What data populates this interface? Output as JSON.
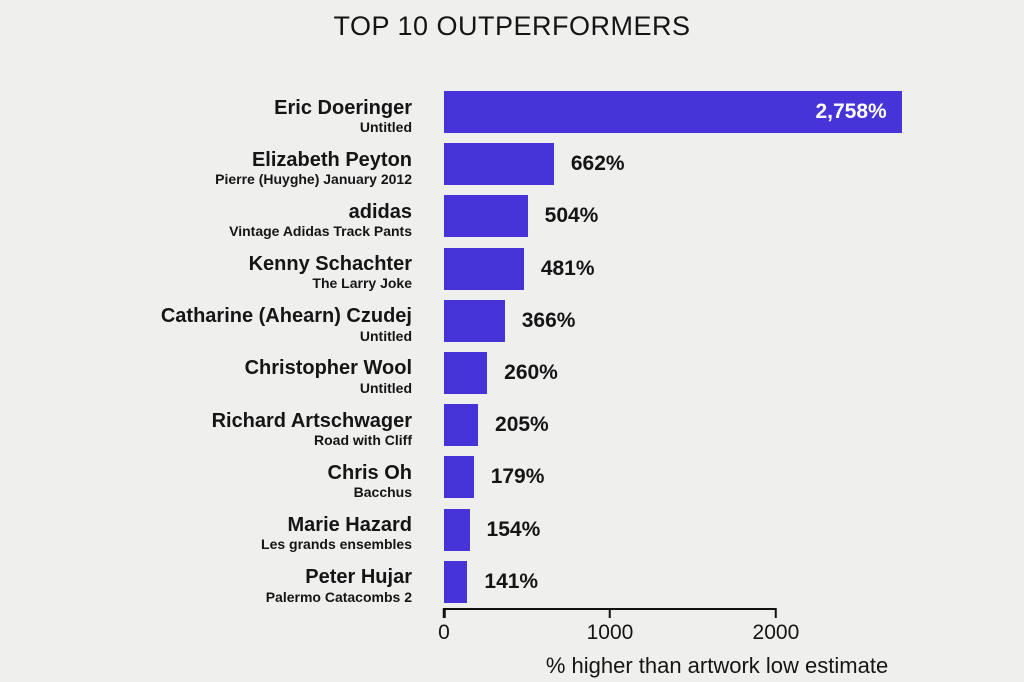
{
  "colors": {
    "bar": "#4634d9",
    "background": "#efefee",
    "text": "#151515",
    "value_inside": "#ffffff"
  },
  "chart_data": {
    "type": "bar",
    "orientation": "horizontal",
    "title": "TOP 10 OUTPERFORMERS",
    "xlabel": "% higher than artwork low estimate",
    "xlim": [
      0,
      3290
    ],
    "xticks": [
      0,
      1000,
      2000
    ],
    "xtick_labels": [
      "0",
      "1000",
      "2000"
    ],
    "grid": false,
    "legend": false,
    "categories": [
      "Eric Doeringer",
      "Elizabeth Peyton",
      "adidas",
      "Kenny Schachter",
      "Catharine (Ahearn) Czudej",
      "Christopher Wool",
      "Richard Artschwager",
      "Chris Oh",
      "Marie Hazard",
      "Peter Hujar"
    ],
    "artwork_titles": [
      "Untitled",
      "Pierre (Huyghe) January 2012",
      "Vintage Adidas Track Pants",
      "The Larry Joke",
      "Untitled",
      "Untitled",
      "Road with Cliff",
      "Bacchus",
      "Les grands ensembles",
      "Palermo Catacombs 2"
    ],
    "values": [
      2758,
      662,
      504,
      481,
      366,
      260,
      205,
      179,
      154,
      141
    ],
    "value_labels": [
      "2,758%",
      "662%",
      "504%",
      "481%",
      "366%",
      "260%",
      "205%",
      "179%",
      "154%",
      "141%"
    ]
  }
}
